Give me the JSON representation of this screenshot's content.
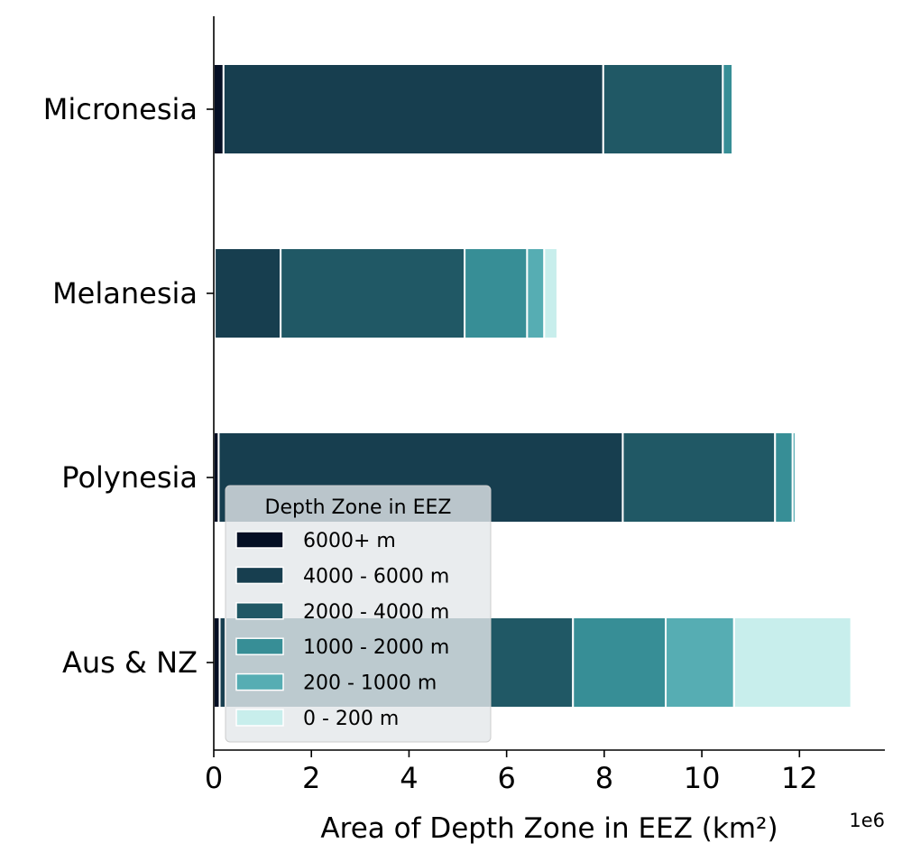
{
  "chart_data": {
    "type": "bar",
    "orientation": "horizontal",
    "stacked": true,
    "categories": [
      "Micronesia",
      "Melanesia",
      "Polynesia",
      "Aus & NZ"
    ],
    "xlabel": "Area of Depth Zone in EEZ (km²)",
    "x_offset_label": "1e6",
    "x_multiplier": 1000000,
    "xlim": [
      0,
      13.75
    ],
    "xticks": [
      0,
      2,
      4,
      6,
      8,
      10,
      12
    ],
    "grid": false,
    "legend": {
      "title": "Depth Zone in EEZ",
      "placement": "lower-left"
    },
    "series": [
      {
        "name": "6000+ m",
        "color": "#050f24",
        "values": [
          0.2,
          0.02,
          0.1,
          0.12
        ]
      },
      {
        "name": "4000 - 6000 m",
        "color": "#173e4f",
        "values": [
          7.78,
          1.35,
          8.28,
          0.12
        ]
      },
      {
        "name": "2000 - 4000 m",
        "color": "#205865",
        "values": [
          2.45,
          3.77,
          3.12,
          7.12
        ]
      },
      {
        "name": "1000 - 2000 m",
        "color": "#378e96",
        "values": [
          0.2,
          1.28,
          0.36,
          1.9
        ]
      },
      {
        "name": "200 - 1000 m",
        "color": "#56adb3",
        "values": [
          0.01,
          0.35,
          0.06,
          1.4
        ]
      },
      {
        "name": "0 - 200 m",
        "color": "#c8eeec",
        "values": [
          0.005,
          0.27,
          0.02,
          2.4
        ]
      }
    ]
  }
}
